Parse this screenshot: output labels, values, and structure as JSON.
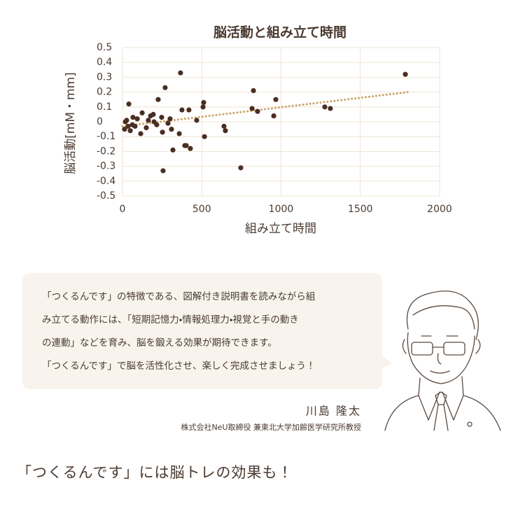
{
  "chart_data": {
    "type": "scatter",
    "title": "脳活動と組み立て時間",
    "x_label": "組み立て時間",
    "y_label": "脳活動[mM・mm]",
    "xlim": [
      0,
      2000
    ],
    "ylim": [
      -0.5,
      0.5
    ],
    "xticks": [
      0,
      500,
      1000,
      1500,
      2000
    ],
    "yticks": [
      0.5,
      0.4,
      0.3,
      0.2,
      0.1,
      0,
      -0.1,
      -0.2,
      -0.3,
      -0.4,
      -0.5
    ],
    "grid": true,
    "series": [
      {
        "color": "#4a2e22",
        "x": [
          13,
          18,
          26,
          35,
          40,
          49,
          62,
          66,
          79,
          93,
          115,
          124,
          150,
          163,
          177,
          194,
          199,
          216,
          225,
          247,
          252,
          256,
          269,
          287,
          300,
          309,
          318,
          358,
          366,
          375,
          393,
          402,
          419,
          428,
          468,
          508,
          512,
          517,
          640,
          649,
          746,
          817,
          826,
          852,
          954,
          967,
          1276,
          1311,
          1784
        ],
        "values": [
          -0.05,
          0,
          0.01,
          -0.03,
          0.12,
          -0.06,
          -0.02,
          0.03,
          -0.03,
          0.02,
          -0.08,
          0.06,
          -0.04,
          0.01,
          0.04,
          0.05,
          0,
          -0.02,
          0.15,
          0.03,
          -0.07,
          -0.33,
          0.23,
          -0.01,
          0.02,
          -0.05,
          -0.19,
          -0.08,
          0.33,
          0.08,
          -0.16,
          -0.16,
          0.08,
          -0.18,
          0.01,
          0.1,
          0.13,
          -0.1,
          -0.03,
          -0.06,
          -0.31,
          0.09,
          0.21,
          0.07,
          0.04,
          0.15,
          0.1,
          0.09,
          0.32
        ]
      },
      {
        "type": "trend",
        "color": "#c9a063",
        "x": [
          0,
          1800
        ],
        "values": [
          -0.03,
          0.2
        ]
      }
    ]
  },
  "quote": {
    "lines": [
      "「つくるんです」の特徴である、図解付き説明書を読みながら組",
      "み立てる動作には、「短期記憶力・情報処理力・視覚と手の動き",
      "の連動」などを育み、脳を鍛える効果が期待できます。",
      "「つくるんです」で脳を活性化させ、楽しく完成させましょう！"
    ],
    "name": "川島 隆太",
    "affiliation": "株式会社NeU取締役 兼東北大学加齢医学研究所教授"
  },
  "footer": "「つくるんです」には脳トレの効果も！"
}
